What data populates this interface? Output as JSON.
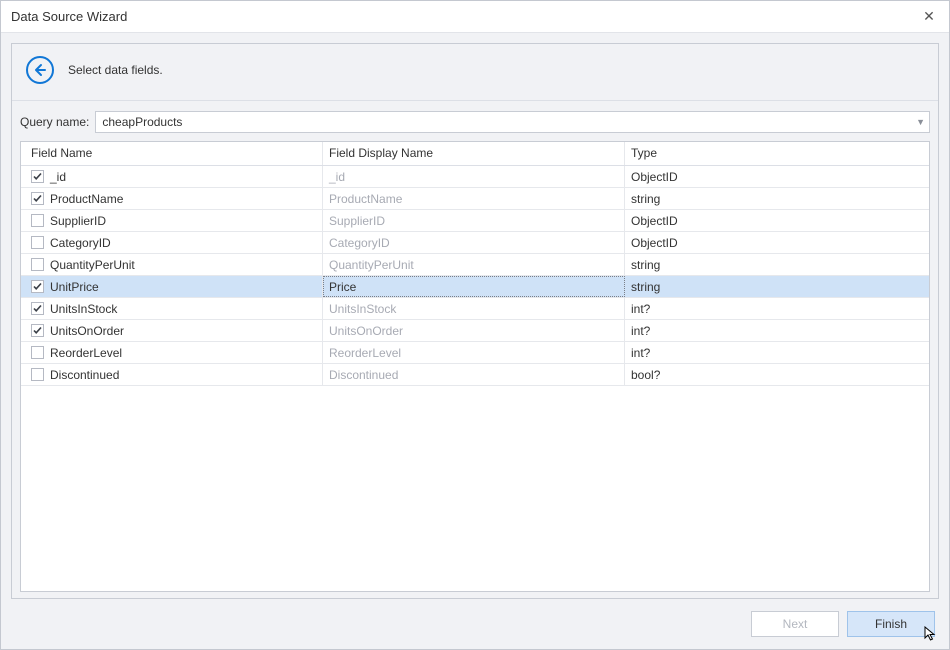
{
  "window": {
    "title": "Data Source Wizard",
    "close_glyph": "✕"
  },
  "header": {
    "instruction": "Select data fields."
  },
  "query": {
    "label": "Query name:",
    "value": "cheapProducts"
  },
  "table": {
    "columns": [
      "Field Name",
      "Field Display Name",
      "Type"
    ],
    "rows": [
      {
        "checked": true,
        "field": "_id",
        "display": "_id",
        "type": "ObjectID",
        "selected": false
      },
      {
        "checked": true,
        "field": "ProductName",
        "display": "ProductName",
        "type": "string",
        "selected": false
      },
      {
        "checked": false,
        "field": "SupplierID",
        "display": "SupplierID",
        "type": "ObjectID",
        "selected": false
      },
      {
        "checked": false,
        "field": "CategoryID",
        "display": "CategoryID",
        "type": "ObjectID",
        "selected": false
      },
      {
        "checked": false,
        "field": "QuantityPerUnit",
        "display": "QuantityPerUnit",
        "type": "string",
        "selected": false
      },
      {
        "checked": true,
        "field": "UnitPrice",
        "display": "Price",
        "type": "string",
        "selected": true
      },
      {
        "checked": true,
        "field": "UnitsInStock",
        "display": "UnitsInStock",
        "type": "int?",
        "selected": false
      },
      {
        "checked": true,
        "field": "UnitsOnOrder",
        "display": "UnitsOnOrder",
        "type": "int?",
        "selected": false
      },
      {
        "checked": false,
        "field": "ReorderLevel",
        "display": "ReorderLevel",
        "type": "int?",
        "selected": false
      },
      {
        "checked": false,
        "field": "Discontinued",
        "display": "Discontinued",
        "type": "bool?",
        "selected": false
      }
    ]
  },
  "footer": {
    "next": "Next",
    "finish": "Finish"
  },
  "colors": {
    "accent": "#1177d6",
    "selected_row": "#cfe2f7",
    "border": "#c8ccd4",
    "panel_bg": "#f1f2f5",
    "muted_text": "#a7aab3"
  }
}
